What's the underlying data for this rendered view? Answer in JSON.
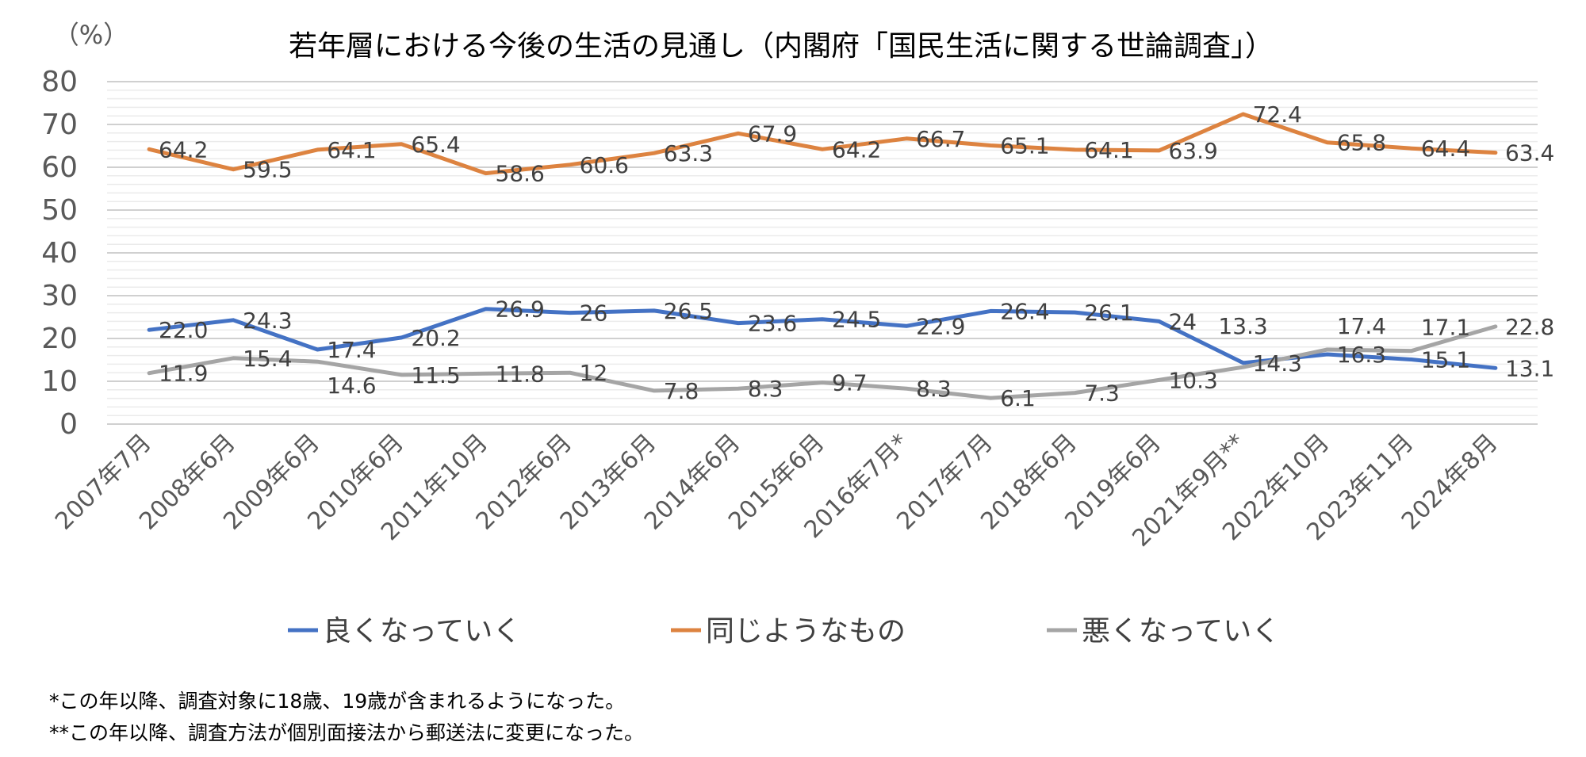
{
  "chart_data": {
    "type": "line",
    "title": "若年層における今後の生活の見通し（内閣府「国民生活に関する世論調査」）",
    "ylabel": "（%）",
    "xlabel": "",
    "ylim": [
      0,
      80
    ],
    "yticks": [
      0,
      10,
      20,
      30,
      40,
      50,
      60,
      70,
      80
    ],
    "grid": true,
    "legend_position": "bottom",
    "categories": [
      "2007年7月",
      "2008年6月",
      "2009年6月",
      "2010年6月",
      "2011年10月",
      "2012年6月",
      "2013年6月",
      "2014年6月",
      "2015年6月",
      "2016年7月*",
      "2017年7月",
      "2018年6月",
      "2019年6月",
      "2021年9月**",
      "2022年10月",
      "2023年11月",
      "2024年8月"
    ],
    "series": [
      {
        "name": "良くなっていく",
        "color": "#4472C4",
        "values": [
          22.0,
          24.3,
          17.4,
          20.2,
          26.9,
          26,
          26.5,
          23.6,
          24.5,
          22.9,
          26.4,
          26.1,
          24,
          14.3,
          16.3,
          15.1,
          13.1
        ],
        "labels": [
          "22.0",
          "24.3",
          "17.4",
          "20.2",
          "26.9",
          "26",
          "26.5",
          "23.6",
          "24.5",
          "22.9",
          "26.4",
          "26.1",
          "24",
          "14.3",
          "16.3",
          "15.1",
          "13.1"
        ]
      },
      {
        "name": "同じようなもの",
        "color": "#DD8340",
        "values": [
          64.2,
          59.5,
          64.1,
          65.4,
          58.6,
          60.6,
          63.3,
          67.9,
          64.2,
          66.7,
          65.1,
          64.1,
          63.9,
          72.4,
          65.8,
          64.4,
          63.4
        ],
        "labels": [
          "64.2",
          "59.5",
          "64.1",
          "65.4",
          "58.6",
          "60.6",
          "63.3",
          "67.9",
          "64.2",
          "66.7",
          "65.1",
          "64.1",
          "63.9",
          "72.4",
          "65.8",
          "64.4",
          "63.4"
        ]
      },
      {
        "name": "悪くなっていく",
        "color": "#A5A5A5",
        "values": [
          11.9,
          15.4,
          14.6,
          11.5,
          11.8,
          12,
          7.8,
          8.3,
          9.7,
          8.3,
          6.1,
          7.3,
          10.3,
          13.3,
          17.4,
          17.1,
          22.8
        ],
        "labels": [
          "11.9",
          "15.4",
          "14.6",
          "11.5",
          "11.8",
          "12",
          "7.8",
          "8.3",
          "9.7",
          "8.3",
          "6.1",
          "7.3",
          "10.3",
          "13.3",
          "17.4",
          "17.1",
          "22.8"
        ]
      }
    ]
  },
  "footnotes": [
    "*この年以降、調査対象に18歳、19歳が含まれるようになった。",
    "**この年以降、調査方法が個別面接法から郵送法に変更になった。"
  ]
}
